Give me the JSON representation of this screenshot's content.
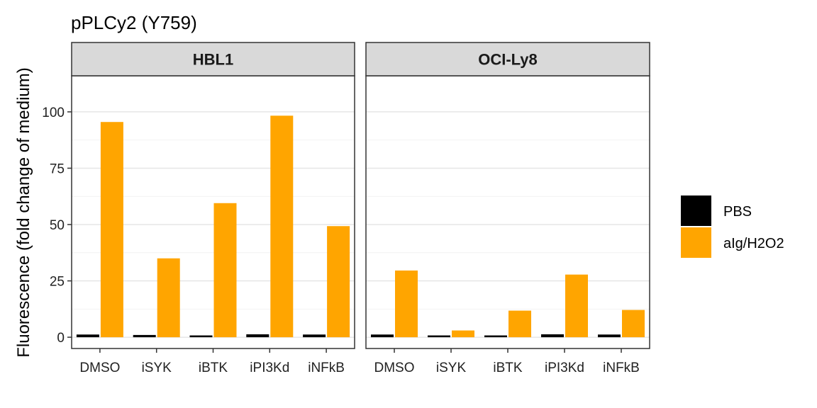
{
  "chart_data": {
    "type": "bar",
    "title": "pPLCy2 (Y759)",
    "ylabel": "Fluorescence (fold change of medium)",
    "xlabel": "",
    "ylim": [
      -5,
      116
    ],
    "yticks": [
      0,
      25,
      50,
      75,
      100
    ],
    "grid": true,
    "legend_position": "right",
    "categories": [
      "DMSO",
      "iSYK",
      "iBTK",
      "iPI3Kd",
      "iNFkB"
    ],
    "colors": {
      "PBS": "#000000",
      "aIg/H2O2": "#FFA500"
    },
    "series_names": [
      "PBS",
      "aIg/H2O2"
    ],
    "panels": [
      {
        "label": "HBL1",
        "series": [
          {
            "name": "PBS",
            "values": [
              1.2,
              1.0,
              0.8,
              1.3,
              1.2
            ]
          },
          {
            "name": "aIg/H2O2",
            "values": [
              95.5,
              35.0,
              59.5,
              98.3,
              49.3
            ]
          }
        ]
      },
      {
        "label": "OCI-Ly8",
        "series": [
          {
            "name": "PBS",
            "values": [
              1.2,
              0.8,
              0.8,
              1.3,
              1.2
            ]
          },
          {
            "name": "aIg/H2O2",
            "values": [
              29.6,
              3.0,
              11.8,
              27.8,
              12.1
            ]
          }
        ]
      }
    ]
  }
}
